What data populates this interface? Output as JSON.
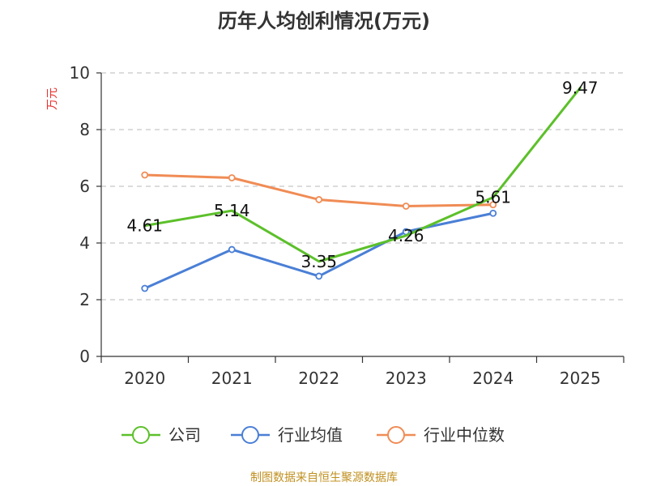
{
  "chart_data": {
    "type": "line",
    "title": "历年人均创利情况(万元)",
    "ylabel": "万元",
    "xlabel": "",
    "categories": [
      "2020",
      "2021",
      "2022",
      "2023",
      "2024",
      "2025"
    ],
    "ylim": [
      0,
      10
    ],
    "yticks": [
      0,
      2,
      4,
      6,
      8,
      10
    ],
    "grid": true,
    "legend_position": "bottom",
    "series": [
      {
        "name": "公司",
        "color": "#5cc02a",
        "values": [
          4.61,
          5.14,
          3.35,
          4.26,
          5.61,
          9.47
        ],
        "data_labels": [
          "4.61",
          "5.14",
          "3.35",
          "4.26",
          "5.61",
          "9.47"
        ],
        "marker_visible": [
          false,
          false,
          false,
          false,
          false,
          false
        ]
      },
      {
        "name": "行业均值",
        "color": "#4a7fd6",
        "values": [
          2.4,
          3.77,
          2.83,
          4.4,
          5.05,
          null
        ],
        "marker_visible": [
          true,
          true,
          true,
          true,
          true,
          false
        ]
      },
      {
        "name": "行业中位数",
        "color": "#f08c55",
        "values": [
          6.4,
          6.3,
          5.53,
          5.3,
          5.35,
          null
        ],
        "marker_visible": [
          true,
          true,
          true,
          true,
          true,
          false
        ]
      }
    ]
  },
  "source_text": "制图数据来自恒生聚源数据库"
}
